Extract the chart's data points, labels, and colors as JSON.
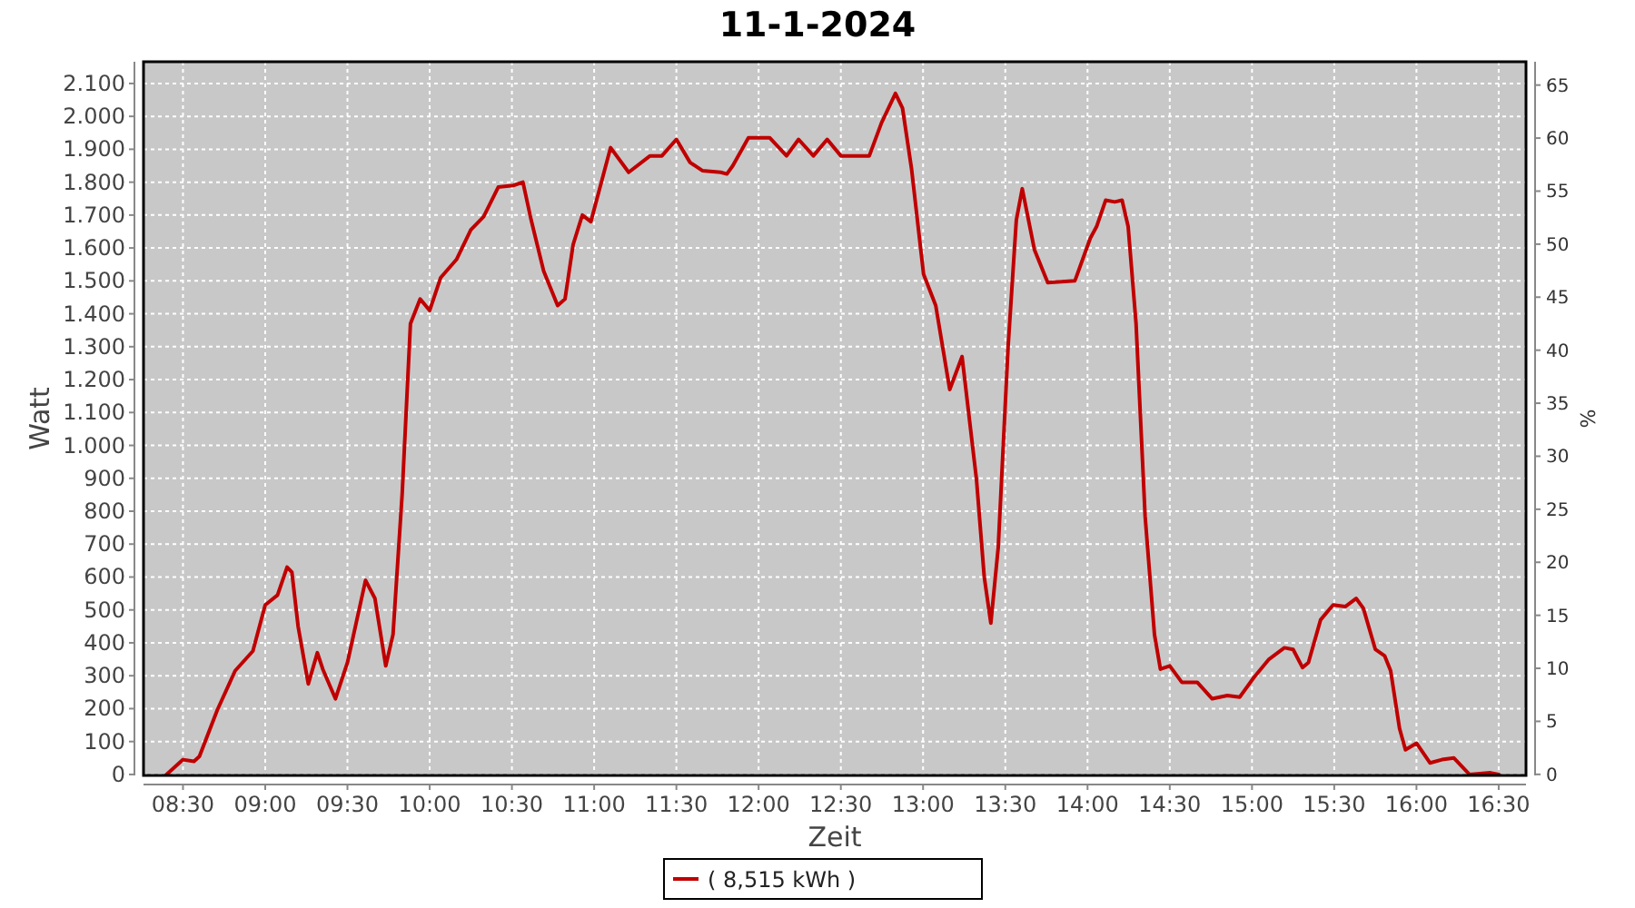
{
  "chart_data": {
    "type": "line",
    "title": "11-1-2024",
    "xlabel": "Zeit",
    "ylabel": "Watt",
    "y2label": "%",
    "xlim": [
      8.26,
      16.666
    ],
    "ylim": [
      -3,
      2166
    ],
    "y2lim": [
      -0.1,
      67.2
    ],
    "xticks": [
      {
        "value": 8.5,
        "label": "08:30"
      },
      {
        "value": 9,
        "label": "09:00"
      },
      {
        "value": 9.5,
        "label": "09:30"
      },
      {
        "value": 10,
        "label": "10:00"
      },
      {
        "value": 10.5,
        "label": "10:30"
      },
      {
        "value": 11,
        "label": "11:00"
      },
      {
        "value": 11.5,
        "label": "11:30"
      },
      {
        "value": 12,
        "label": "12:00"
      },
      {
        "value": 12.5,
        "label": "12:30"
      },
      {
        "value": 13,
        "label": "13:00"
      },
      {
        "value": 13.5,
        "label": "13:30"
      },
      {
        "value": 14,
        "label": "14:00"
      },
      {
        "value": 14.5,
        "label": "14:30"
      },
      {
        "value": 15,
        "label": "15:00"
      },
      {
        "value": 15.5,
        "label": "15:30"
      },
      {
        "value": 16,
        "label": "16:00"
      },
      {
        "value": 16.5,
        "label": "16:30"
      }
    ],
    "yticks": [
      0,
      100,
      200,
      300,
      400,
      500,
      600,
      700,
      800,
      900,
      {
        "value": 1000,
        "label": "1.000"
      },
      {
        "value": 1100,
        "label": "1.100"
      },
      {
        "value": 1200,
        "label": "1.200"
      },
      {
        "value": 1300,
        "label": "1.300"
      },
      {
        "value": 1400,
        "label": "1.400"
      },
      {
        "value": 1500,
        "label": "1.500"
      },
      {
        "value": 1600,
        "label": "1.600"
      },
      {
        "value": 1700,
        "label": "1.700"
      },
      {
        "value": 1800,
        "label": "1.800"
      },
      {
        "value": 1900,
        "label": "1.900"
      },
      {
        "value": 2000,
        "label": "2.000"
      },
      {
        "value": 2100,
        "label": "2.100"
      }
    ],
    "y2ticks": [
      0,
      5,
      10,
      15,
      20,
      25,
      30,
      35,
      40,
      45,
      50,
      55,
      60,
      65
    ],
    "grid": true,
    "legend": "bottom",
    "marker": "none",
    "line_style": "solid",
    "series": [
      {
        "name": "( 8,515 kWh )",
        "color": "#c00000",
        "x": [
          8.4,
          8.5,
          8.567,
          8.6,
          8.708,
          8.817,
          8.925,
          9.0,
          9.075,
          9.133,
          9.162,
          9.2,
          9.262,
          9.317,
          9.35,
          9.427,
          9.5,
          9.61,
          9.667,
          9.733,
          9.777,
          9.833,
          9.883,
          9.942,
          10.0,
          10.067,
          10.163,
          10.25,
          10.328,
          10.417,
          10.508,
          10.567,
          10.617,
          10.693,
          10.778,
          10.823,
          10.872,
          10.928,
          10.98,
          11.028,
          11.1,
          11.21,
          11.34,
          11.412,
          11.5,
          11.583,
          11.658,
          11.77,
          11.807,
          11.843,
          11.938,
          12.067,
          12.17,
          12.243,
          12.333,
          12.417,
          12.5,
          12.673,
          12.747,
          12.832,
          12.875,
          12.93,
          13.003,
          13.077,
          13.162,
          13.237,
          13.325,
          13.372,
          13.412,
          13.457,
          13.517,
          13.567,
          13.603,
          13.677,
          13.758,
          13.923,
          14.017,
          14.055,
          14.11,
          14.165,
          14.21,
          14.247,
          14.295,
          14.35,
          14.407,
          14.443,
          14.5,
          14.573,
          14.667,
          14.758,
          14.85,
          14.925,
          15.012,
          15.103,
          15.197,
          15.25,
          15.307,
          15.343,
          15.417,
          15.493,
          15.567,
          15.633,
          15.677,
          15.75,
          15.807,
          15.843,
          15.897,
          15.933,
          16.0,
          16.082,
          16.155,
          16.228,
          16.322,
          16.45,
          16.5
        ],
        "values": [
          0,
          45,
          40,
          55,
          195,
          315,
          375,
          515,
          545,
          630,
          615,
          450,
          275,
          370,
          320,
          230,
          340,
          590,
          535,
          330,
          425,
          855,
          1370,
          1445,
          1410,
          1510,
          1565,
          1655,
          1695,
          1785,
          1790,
          1800,
          1685,
          1530,
          1425,
          1445,
          1610,
          1700,
          1680,
          1770,
          1905,
          1830,
          1880,
          1880,
          1930,
          1860,
          1835,
          1830,
          1825,
          1850,
          1935,
          1935,
          1880,
          1930,
          1880,
          1930,
          1880,
          1880,
          1980,
          2070,
          2025,
          1840,
          1520,
          1425,
          1170,
          1270,
          895,
          600,
          460,
          690,
          1300,
          1685,
          1780,
          1595,
          1495,
          1500,
          1630,
          1665,
          1745,
          1740,
          1745,
          1665,
          1370,
          785,
          425,
          320,
          330,
          280,
          280,
          230,
          240,
          235,
          295,
          350,
          385,
          380,
          325,
          340,
          470,
          515,
          510,
          535,
          505,
          380,
          360,
          315,
          140,
          75,
          95,
          35,
          45,
          50,
          0,
          5,
          0
        ]
      }
    ]
  }
}
